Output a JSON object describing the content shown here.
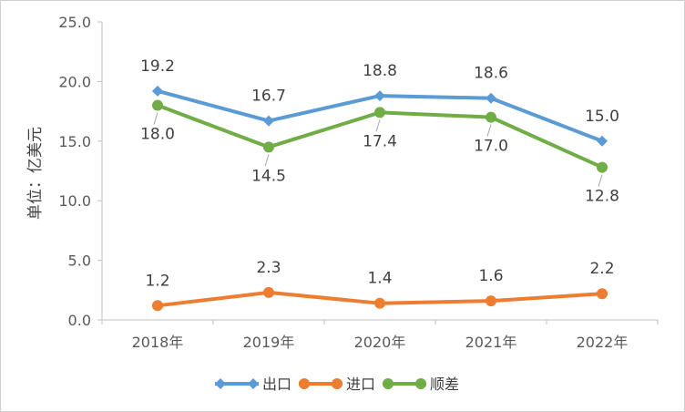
{
  "chart_data": {
    "type": "line",
    "title": "",
    "xlabel": "",
    "ylabel": "单位：亿美元",
    "categories": [
      "2018年",
      "2019年",
      "2020年",
      "2021年",
      "2022年"
    ],
    "ylim": [
      0,
      25
    ],
    "yticks": [
      "0.0",
      "5.0",
      "10.0",
      "15.0",
      "20.0",
      "25.0"
    ],
    "grid": false,
    "legend_position": "bottom",
    "series": [
      {
        "name": "出口",
        "values": [
          19.2,
          16.7,
          18.8,
          18.6,
          15.0
        ],
        "labels": [
          "19.2",
          "16.7",
          "18.8",
          "18.6",
          "15.0"
        ],
        "color": "#5b9bd5",
        "marker": "diamond"
      },
      {
        "name": "进口",
        "values": [
          1.2,
          2.3,
          1.4,
          1.6,
          2.2
        ],
        "labels": [
          "1.2",
          "2.3",
          "1.4",
          "1.6",
          "2.2"
        ],
        "color": "#ed7d31",
        "marker": "circle"
      },
      {
        "name": "顺差",
        "values": [
          18.0,
          14.5,
          17.4,
          17.0,
          12.8
        ],
        "labels": [
          "18.0",
          "14.5",
          "17.4",
          "17.0",
          "12.8"
        ],
        "color": "#70ad47",
        "marker": "circle"
      }
    ]
  }
}
